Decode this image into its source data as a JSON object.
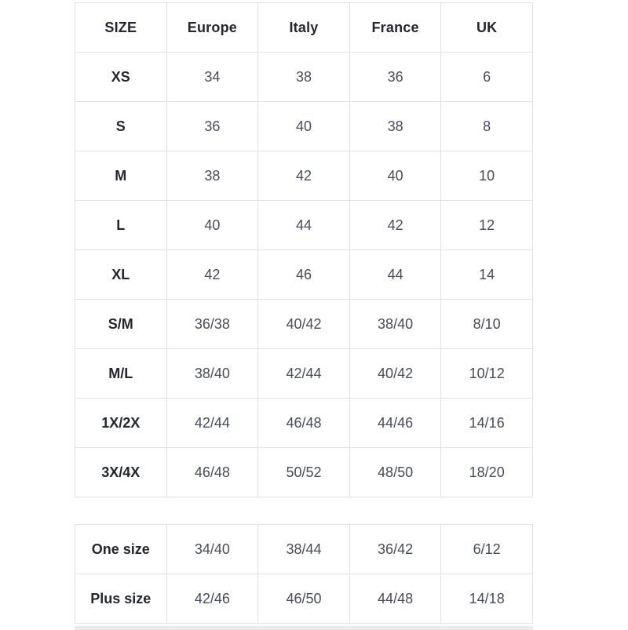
{
  "colors": {
    "border": "#e2e2e2",
    "header_text": "#23262e",
    "cell_text": "#454c5c",
    "background": "#ffffff"
  },
  "size_table": {
    "columns": [
      "SIZE",
      "Europe",
      "Italy",
      "France",
      "UK"
    ],
    "rows": [
      {
        "label": "XS",
        "values": [
          "34",
          "38",
          "36",
          "6"
        ]
      },
      {
        "label": "S",
        "values": [
          "36",
          "40",
          "38",
          "8"
        ]
      },
      {
        "label": "M",
        "values": [
          "38",
          "42",
          "40",
          "10"
        ]
      },
      {
        "label": "L",
        "values": [
          "40",
          "44",
          "42",
          "12"
        ]
      },
      {
        "label": "XL",
        "values": [
          "42",
          "46",
          "44",
          "14"
        ]
      },
      {
        "label": "S/M",
        "values": [
          "36/38",
          "40/42",
          "38/40",
          "8/10"
        ]
      },
      {
        "label": "M/L",
        "values": [
          "38/40",
          "42/44",
          "40/42",
          "10/12"
        ]
      },
      {
        "label": "1X/2X",
        "values": [
          "42/44",
          "46/48",
          "44/46",
          "14/16"
        ]
      },
      {
        "label": "3X/4X",
        "values": [
          "46/48",
          "50/52",
          "48/50",
          "18/20"
        ]
      }
    ]
  },
  "extra_table": {
    "rows": [
      {
        "label": "One size",
        "values": [
          "34/40",
          "38/44",
          "36/42",
          "6/12"
        ]
      },
      {
        "label": "Plus size",
        "values": [
          "42/46",
          "46/50",
          "44/48",
          "14/18"
        ]
      }
    ]
  }
}
